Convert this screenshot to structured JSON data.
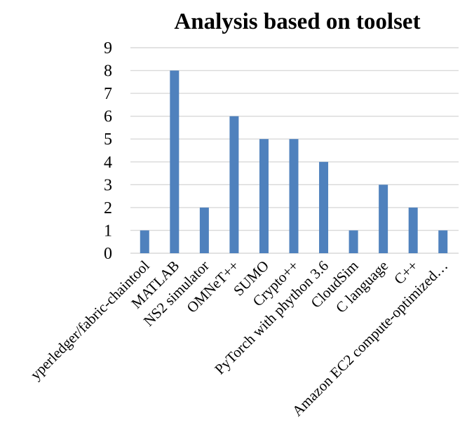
{
  "chart_data": {
    "type": "bar",
    "title": "Analysis based on toolset",
    "xlabel": "",
    "ylabel": "",
    "categories": [
      "yperledger/fabric-chaintool",
      "MATLAB",
      "NS2 simulator",
      "OMNeT++",
      "SUMO",
      "Crypto++",
      "PyTorch with phython 3.6",
      "CloudSim",
      "C language",
      "C++",
      "Amazon EC2 compute-optimized…"
    ],
    "values": [
      1,
      8,
      2,
      6,
      5,
      5,
      4,
      1,
      3,
      2,
      1
    ],
    "ylim": [
      0,
      9
    ],
    "yticks": [
      0,
      1,
      2,
      3,
      4,
      5,
      6,
      7,
      8,
      9
    ],
    "grid": true,
    "legend": "none",
    "bar_color": "#4f81bd"
  }
}
